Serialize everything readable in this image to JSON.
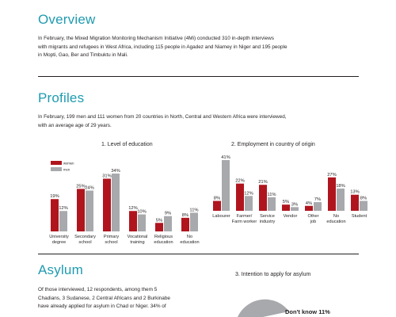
{
  "overview": {
    "title": "Overview",
    "text_lines": [
      "In February, the Mixed Migration Monitoring Mechanism Initiative (4Mi) conducted 310 in-depth interviews",
      "with migrants and refugees in West Africa, including 115 people in Agadez and Niamey in Niger and 195 people",
      "in Mopti, Gao, Ber and Timbuktu in Mali."
    ]
  },
  "profiles": {
    "title": "Profiles",
    "text_lines": [
      "In February, 199 men and 111 women from 20 countries in North, Central and Western Africa were interviewed,",
      "with an average age of 29 years."
    ]
  },
  "asylum": {
    "title": "Asylum",
    "text_lines": [
      "Of those interviewed, 12 respondents, among them 5",
      "Chadians, 3 Sudanese, 2 Central Africans and 2 Burkinabe",
      "have already applied for asylum in Chad or Niger. 34% of"
    ]
  },
  "colors": {
    "women": "#b0151e",
    "men": "#a7a9ac",
    "accent": "#1f9bb0"
  },
  "chart_data": [
    {
      "type": "bar",
      "title": "1. Level of education",
      "legend": [
        "women",
        "men"
      ],
      "categories": [
        [
          "University",
          "degree"
        ],
        [
          "Secondary",
          "school"
        ],
        [
          "Primary",
          "school"
        ],
        [
          "Vocational",
          "training"
        ],
        [
          "Religious",
          "education"
        ],
        [
          "No",
          "education"
        ]
      ],
      "series": [
        {
          "name": "women",
          "values": [
            19,
            25,
            31,
            12,
            5,
            8
          ],
          "labels": [
            "19%",
            "25%",
            "31%",
            "12%",
            "5%",
            "8%"
          ]
        },
        {
          "name": "men",
          "values": [
            12,
            24,
            34,
            10,
            9,
            11
          ],
          "labels": [
            "12%",
            "24%",
            "34%",
            "10%",
            "9%",
            "11%"
          ]
        }
      ],
      "ylim": [
        0,
        41
      ]
    },
    {
      "type": "bar",
      "title": "2. Employment in country of origin",
      "categories": [
        [
          "Labourer",
          ""
        ],
        [
          "Farmer/",
          "Farm worker"
        ],
        [
          "Service",
          "industry"
        ],
        [
          "Vendor",
          ""
        ],
        [
          "Other",
          "job"
        ],
        [
          "No",
          "education"
        ],
        [
          "Student",
          ""
        ]
      ],
      "series": [
        {
          "name": "women",
          "values": [
            8,
            22,
            21,
            5,
            4,
            27,
            13
          ],
          "labels": [
            "8%",
            "22%",
            "21%",
            "5%",
            "4%",
            "27%",
            "13%"
          ]
        },
        {
          "name": "men",
          "values": [
            41,
            12,
            11,
            3,
            7,
            18,
            8
          ],
          "labels": [
            "41%",
            "12%",
            "11%",
            "3%",
            "7%",
            "18%",
            "8%"
          ]
        }
      ],
      "ylim": [
        0,
        41
      ]
    },
    {
      "type": "pie",
      "title": "3. Intention to apply for asylum",
      "slices": [
        {
          "label": "Don't know 11%",
          "value": 11
        }
      ]
    }
  ]
}
